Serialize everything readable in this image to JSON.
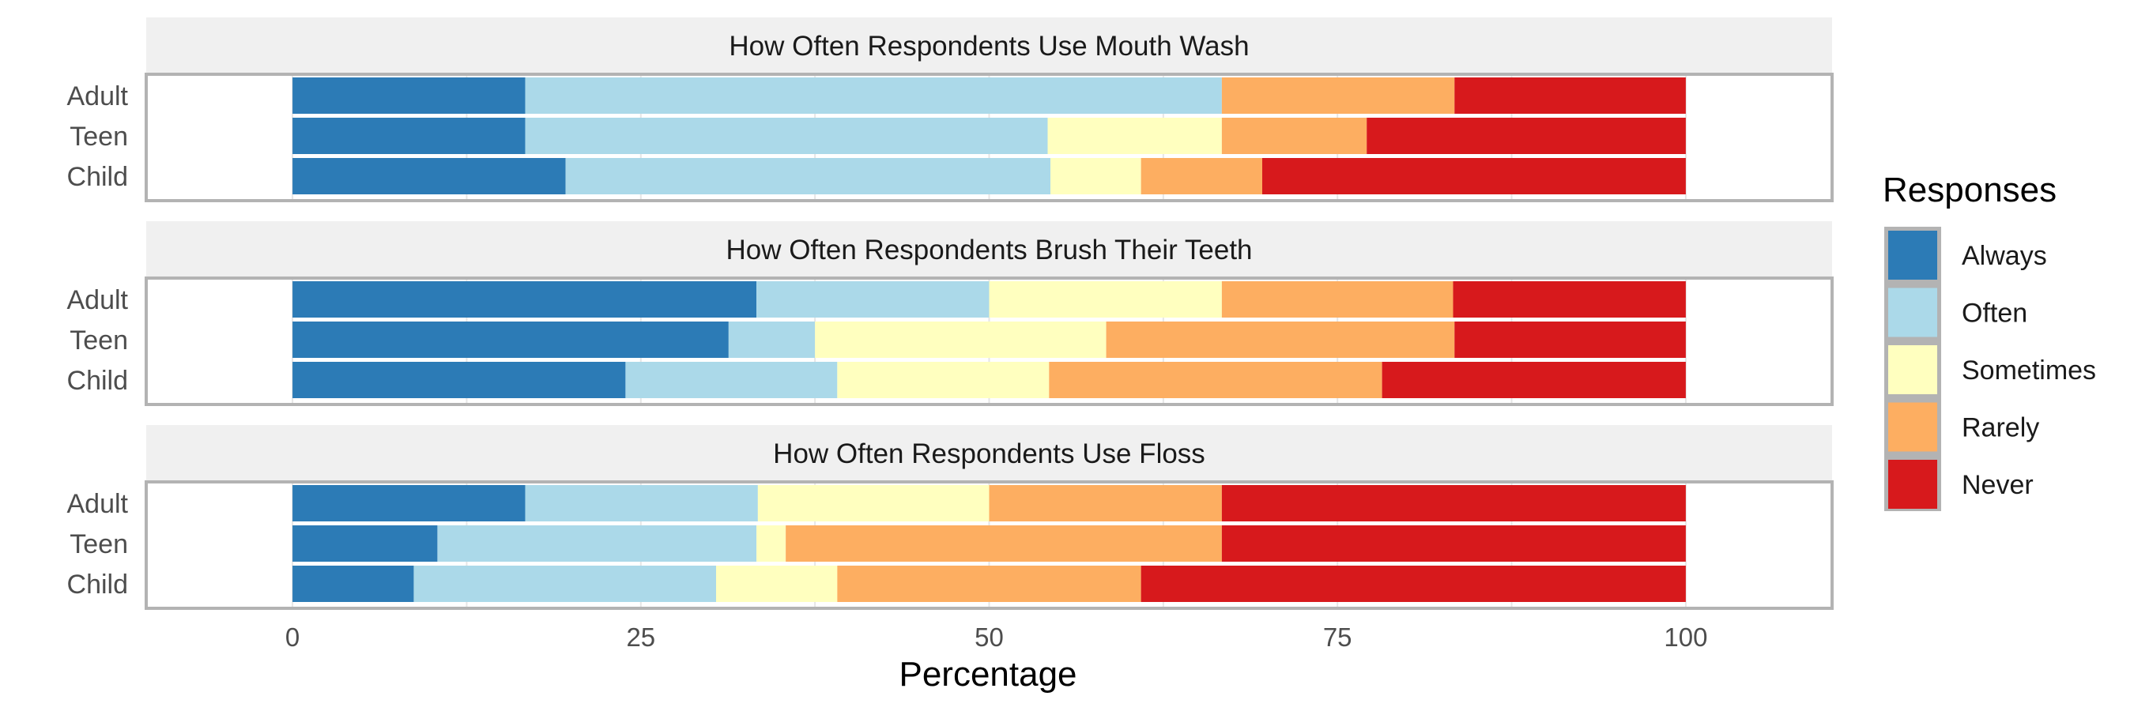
{
  "chart_data": {
    "type": "bar",
    "orientation": "horizontal",
    "stacked": true,
    "xlabel": "Percentage",
    "xlim": [
      -10.5,
      110.5
    ],
    "xticks": [
      0,
      25,
      50,
      75,
      100
    ],
    "legend": {
      "title": "Responses",
      "position": "right",
      "entries": [
        "Always",
        "Often",
        "Sometimes",
        "Rarely",
        "Never"
      ]
    },
    "colors": {
      "Always": "#2c7bb6",
      "Often": "#abd9e9",
      "Sometimes": "#ffffbf",
      "Rarely": "#fdae61",
      "Never": "#d7191c"
    },
    "facets": [
      {
        "title": "How Often Respondents Use Mouth Wash",
        "rows": [
          {
            "label": "Adult",
            "values": [
              16.7,
              50.0,
              0.0,
              16.7,
              16.6
            ]
          },
          {
            "label": "Teen",
            "values": [
              16.7,
              37.5,
              12.5,
              10.4,
              22.9
            ]
          },
          {
            "label": "Child",
            "values": [
              19.6,
              34.8,
              6.5,
              8.7,
              30.4
            ]
          }
        ]
      },
      {
        "title": "How Often Respondents Brush Their Teeth",
        "rows": [
          {
            "label": "Adult",
            "values": [
              33.3,
              16.7,
              16.7,
              16.6,
              16.7
            ]
          },
          {
            "label": "Teen",
            "values": [
              31.3,
              6.2,
              20.9,
              25.0,
              16.6
            ]
          },
          {
            "label": "Child",
            "values": [
              23.9,
              15.2,
              15.2,
              23.9,
              21.8
            ]
          }
        ]
      },
      {
        "title": "How Often Respondents Use Floss",
        "rows": [
          {
            "label": "Adult",
            "values": [
              16.7,
              16.7,
              16.6,
              16.7,
              33.3
            ]
          },
          {
            "label": "Teen",
            "values": [
              10.4,
              22.9,
              2.1,
              31.3,
              33.3
            ]
          },
          {
            "label": "Child",
            "values": [
              8.7,
              21.7,
              8.7,
              21.8,
              39.1
            ]
          }
        ]
      }
    ]
  }
}
